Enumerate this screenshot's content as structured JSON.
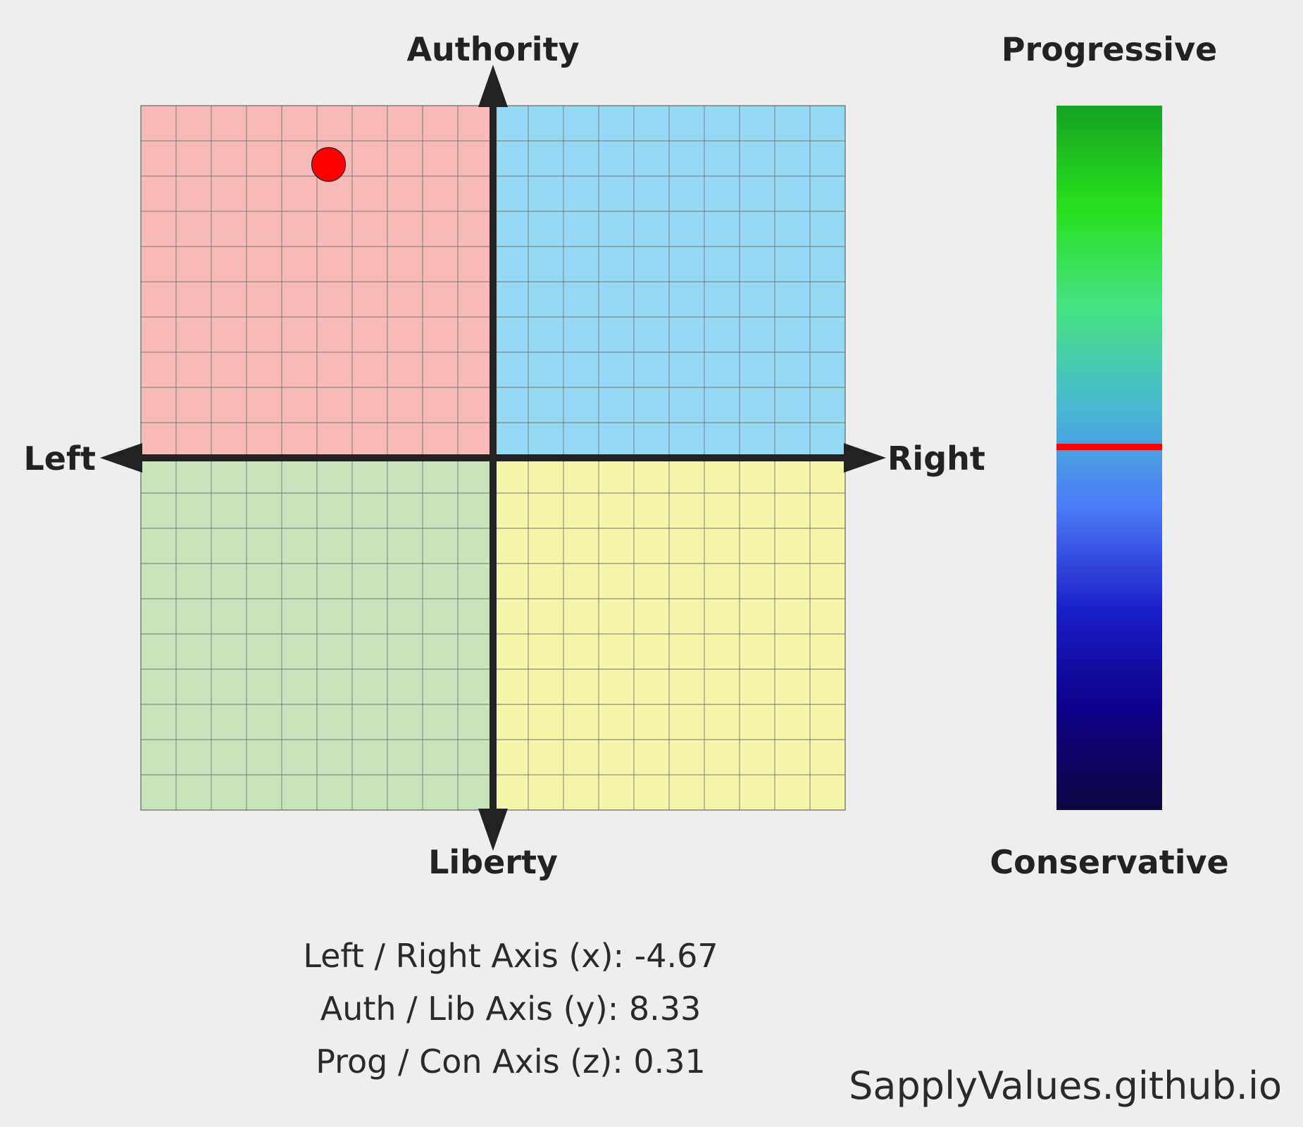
{
  "chart_data": {
    "type": "scatter",
    "subtype": "political-compass",
    "axes": {
      "top_label": "Authority",
      "bottom_label": "Liberty",
      "left_label": "Left",
      "right_label": "Right"
    },
    "xlim": [
      -10,
      10
    ],
    "ylim": [
      -10,
      10
    ],
    "grid": true,
    "grid_divisions": 20,
    "quadrants": {
      "top_left": "#f8b9b9",
      "top_right": "#95d9f5",
      "bottom_left": "#c9e4bd",
      "bottom_right": "#f4f5a6"
    },
    "point": {
      "x": -4.67,
      "y": 8.33,
      "color": "#ff0000"
    },
    "scale_bar": {
      "top_label": "Progressive",
      "bottom_label": "Conservative",
      "range": [
        -10,
        10
      ],
      "value": 0.31,
      "marker_color": "#ff0000",
      "gradient": [
        "#17a125",
        "#27e01d",
        "#45e383",
        "#4ab8d3",
        "#4a7bf7",
        "#1b1fc9",
        "#0e0087",
        "#0d0640"
      ]
    }
  },
  "readouts": {
    "x": "Left / Right Axis (x): -4.67",
    "y": "Auth / Lib Axis (y): 8.33",
    "z": "Prog / Con Axis (z): 0.31"
  },
  "watermark": "SapplyValues.github.io"
}
